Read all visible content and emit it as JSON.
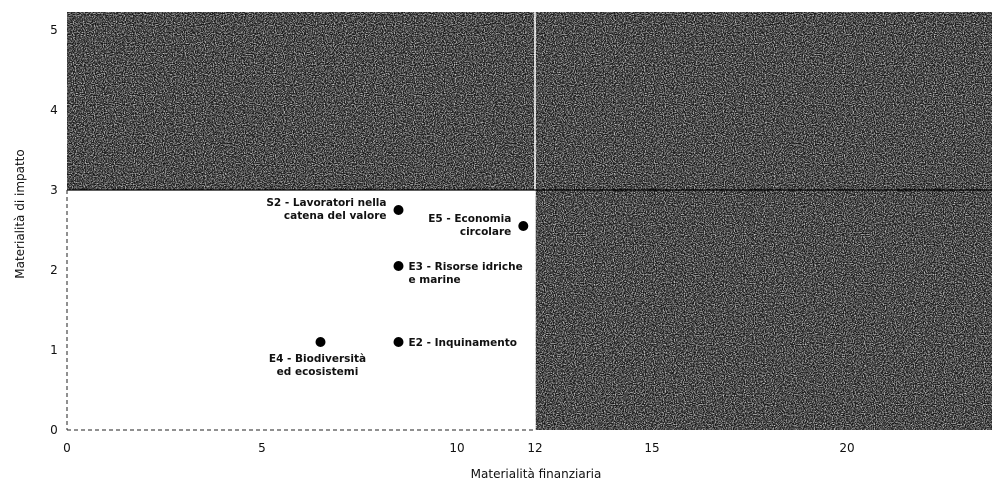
{
  "chart_data": {
    "type": "scatter",
    "xlabel": "Materialità finanziaria",
    "ylabel": "Materialità di impatto",
    "xlim": [
      0,
      25
    ],
    "ylim": [
      0,
      5.3
    ],
    "xticks": [
      0,
      5,
      10,
      12,
      15,
      20
    ],
    "yticks": [
      0,
      1,
      2,
      3,
      4,
      5
    ],
    "threshold": {
      "x": 12,
      "y": 3
    },
    "quadrant_shading": "dark textured fill in upper-left, upper-right and lower-right quadrants; lower-left quadrant white",
    "points": [
      {
        "x": 8.5,
        "y": 2.75,
        "label": [
          "S2 - Lavoratori nella",
          "catena del valore"
        ],
        "anchor": "end"
      },
      {
        "x": 11.7,
        "y": 2.55,
        "label": [
          "E5 - Economia",
          "circolare"
        ],
        "anchor": "end"
      },
      {
        "x": 8.5,
        "y": 2.05,
        "label": [
          "E3 - Risorse idriche",
          "e marine"
        ],
        "anchor": "start"
      },
      {
        "x": 8.5,
        "y": 1.1,
        "label": [
          "E2 - Inquinamento"
        ],
        "anchor": "start"
      },
      {
        "x": 6.5,
        "y": 1.1,
        "label": [
          "E4 - Biodiversità",
          "ed ecosistemi"
        ],
        "anchor": "middle-below"
      }
    ]
  },
  "colors": {
    "dark_fill": "#151515",
    "noise_fill": "#ffffff",
    "point": "#000000",
    "text": "#111111"
  }
}
